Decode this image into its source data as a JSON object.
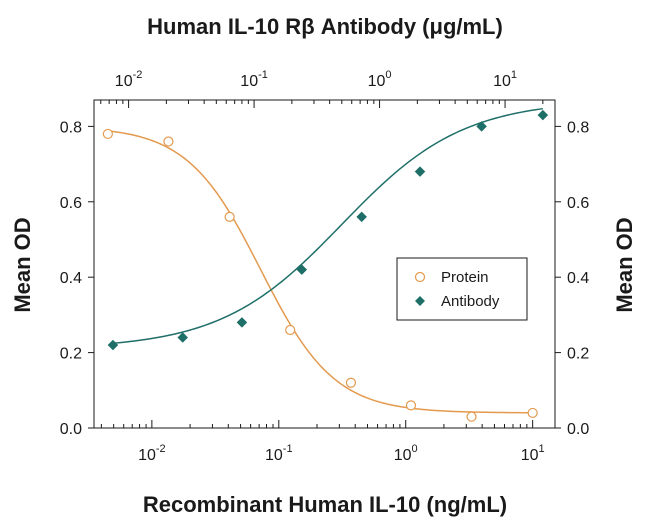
{
  "chart_data": {
    "type": "scatter",
    "title": "Human IL-10 Rβ Antibody (μg/mL)",
    "xlabel": "Recombinant Human IL-10  (ng/mL)",
    "ylabel": "Mean OD",
    "ylabel_right": "Mean OD",
    "x_scale": "log",
    "x_bottom_range": [
      0.0035,
      15
    ],
    "x_top_range": [
      0.0053,
      25
    ],
    "ylim": [
      0,
      0.87
    ],
    "y_ticks": [
      "0.0",
      "0.2",
      "0.4",
      "0.6",
      "0.8"
    ],
    "y_tick_values": [
      0,
      0.2,
      0.4,
      0.6,
      0.8
    ],
    "x_bottom_ticks": [
      {
        "base": "10",
        "exp": "-2",
        "value": 0.01
      },
      {
        "base": "10",
        "exp": "-1",
        "value": 0.1
      },
      {
        "base": "10",
        "exp": "0",
        "value": 1
      },
      {
        "base": "10",
        "exp": "1",
        "value": 10
      }
    ],
    "x_top_ticks": [
      {
        "base": "10",
        "exp": "-2",
        "value": 0.01
      },
      {
        "base": "10",
        "exp": "-1",
        "value": 0.1
      },
      {
        "base": "10",
        "exp": "0",
        "value": 1
      },
      {
        "base": "10",
        "exp": "1",
        "value": 10
      }
    ],
    "grid": false,
    "legend_position": "center-right",
    "series": [
      {
        "name": "Protein",
        "axis": "bottom",
        "marker": "open-circle",
        "color": "#e39a4f",
        "x": [
          0.0045,
          0.0135,
          0.041,
          0.123,
          0.37,
          1.1,
          3.3,
          10
        ],
        "y": [
          0.78,
          0.76,
          0.56,
          0.26,
          0.12,
          0.06,
          0.03,
          0.04
        ],
        "fit": {
          "bottom": 0.04,
          "top": 0.8,
          "ec50": 0.072,
          "hill": 1.5
        }
      },
      {
        "name": "Antibody",
        "axis": "top",
        "marker": "filled-diamond",
        "color": "#1e6f68",
        "x": [
          0.0075,
          0.027,
          0.08,
          0.24,
          0.72,
          2.1,
          6.5,
          20
        ],
        "y": [
          0.22,
          0.24,
          0.28,
          0.42,
          0.56,
          0.68,
          0.8,
          0.83
        ],
        "fit": {
          "bottom": 0.21,
          "top": 0.87,
          "ec50": 0.5,
          "hill": 0.9
        }
      }
    ]
  }
}
